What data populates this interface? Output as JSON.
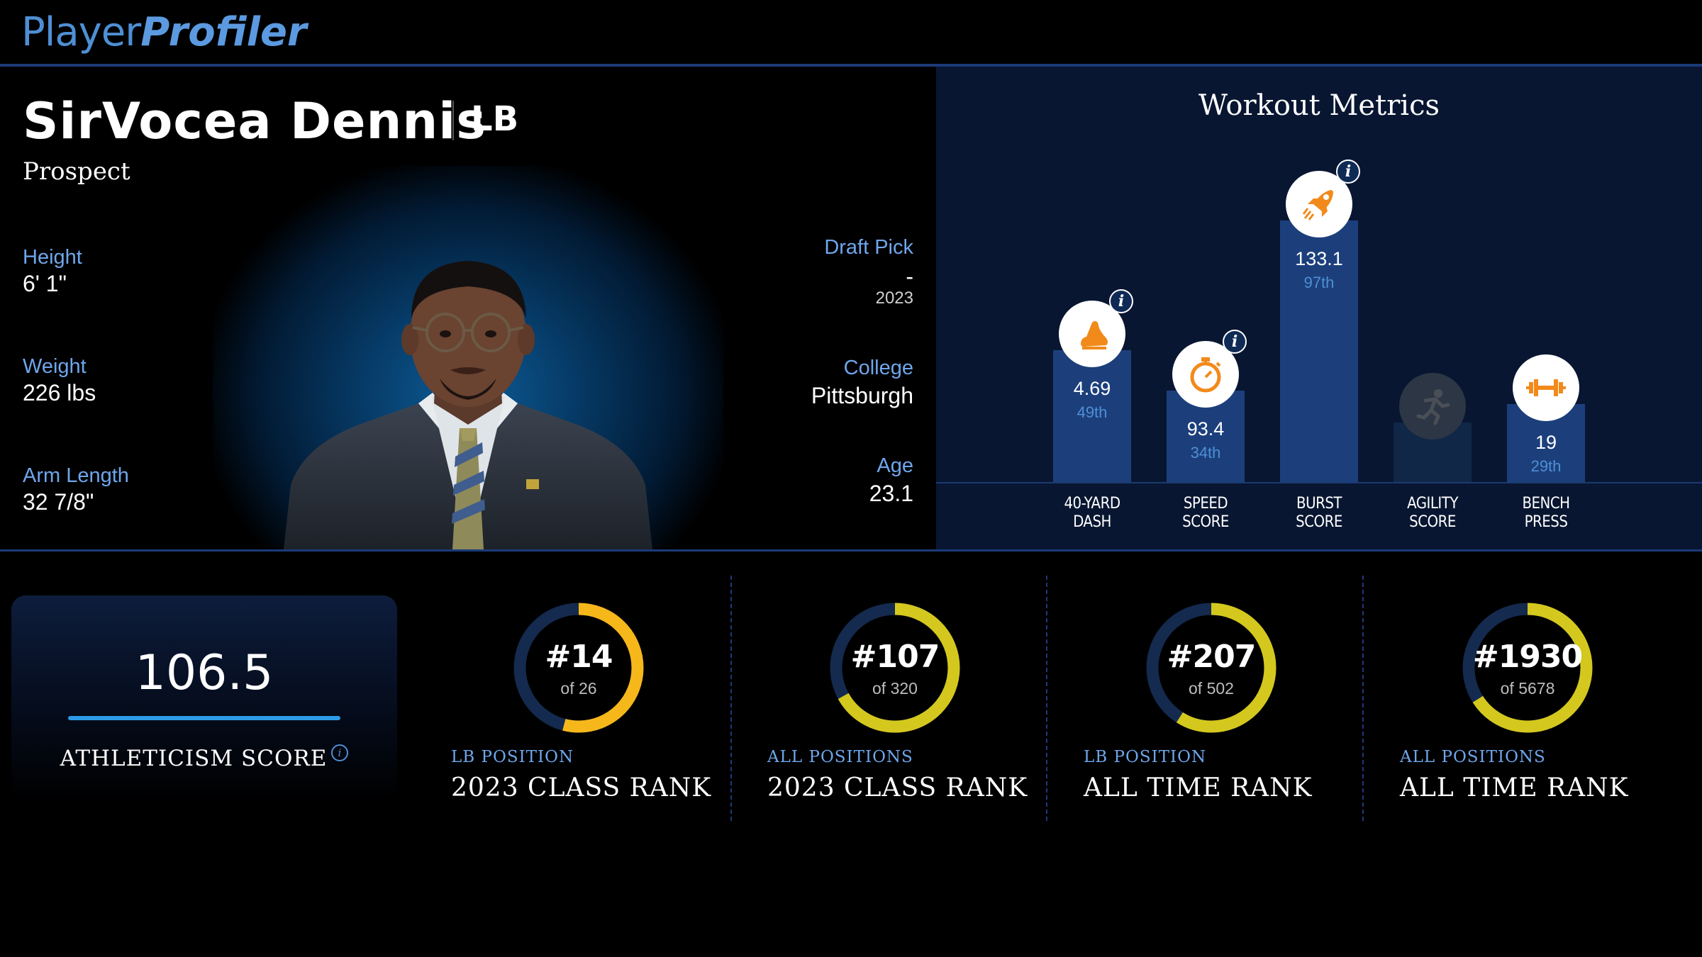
{
  "brand": {
    "part1": "Player",
    "part2": "Profiler"
  },
  "player": {
    "name": "SirVocea Dennis",
    "position": "LB",
    "status": "Prospect",
    "height_label": "Height",
    "height": "6' 1\"",
    "weight_label": "Weight",
    "weight": "226 lbs",
    "arm_label": "Arm Length",
    "arm": "32 7/8\"",
    "draft_label": "Draft Pick",
    "draft_pick": "-",
    "draft_year": "2023",
    "college_label": "College",
    "college": "Pittsburgh",
    "age_label": "Age",
    "age": "23.1"
  },
  "workout": {
    "title": "Workout Metrics",
    "metrics": [
      {
        "label1": "40-YARD",
        "label2": "DASH",
        "value": "4.69",
        "percentile": "49th",
        "icon": "running-shoe-icon",
        "percentile_value": 49
      },
      {
        "label1": "SPEED",
        "label2": "SCORE",
        "value": "93.4",
        "percentile": "34th",
        "icon": "stopwatch-icon",
        "percentile_value": 34
      },
      {
        "label1": "BURST",
        "label2": "SCORE",
        "value": "133.1",
        "percentile": "97th",
        "icon": "rocket-icon",
        "percentile_value": 97
      },
      {
        "label1": "AGILITY",
        "label2": "SCORE",
        "value": "",
        "percentile": "",
        "icon": "runner-icon",
        "percentile_value": 22
      },
      {
        "label1": "BENCH",
        "label2": "PRESS",
        "value": "19",
        "percentile": "29th",
        "icon": "dumbbell-icon",
        "percentile_value": 29
      }
    ]
  },
  "athleticism": {
    "score": "106.5",
    "label": "ATHLETICISM SCORE"
  },
  "ranks": [
    {
      "rank": "#14",
      "of": "of 26",
      "category": "LB POSITION",
      "title": "2023 CLASS RANK",
      "fraction": 0.54,
      "color": "#f6b71a"
    },
    {
      "rank": "#107",
      "of": "of 320",
      "category": "ALL POSITIONS",
      "title": "2023 CLASS RANK",
      "fraction": 0.67,
      "color": "#d4c81e"
    },
    {
      "rank": "#207",
      "of": "of 502",
      "category": "LB POSITION",
      "title": "ALL TIME RANK",
      "fraction": 0.59,
      "color": "#d4c81e"
    },
    {
      "rank": "#1930",
      "of": "of 5678",
      "category": "ALL POSITIONS",
      "title": "ALL TIME RANK",
      "fraction": 0.66,
      "color": "#d4c81e"
    }
  ],
  "colors": {
    "accent": "#4e8fd4",
    "bar": "#1c3f7c",
    "ring_track": "#142a4e",
    "icon_orange": "#f28a1b"
  }
}
